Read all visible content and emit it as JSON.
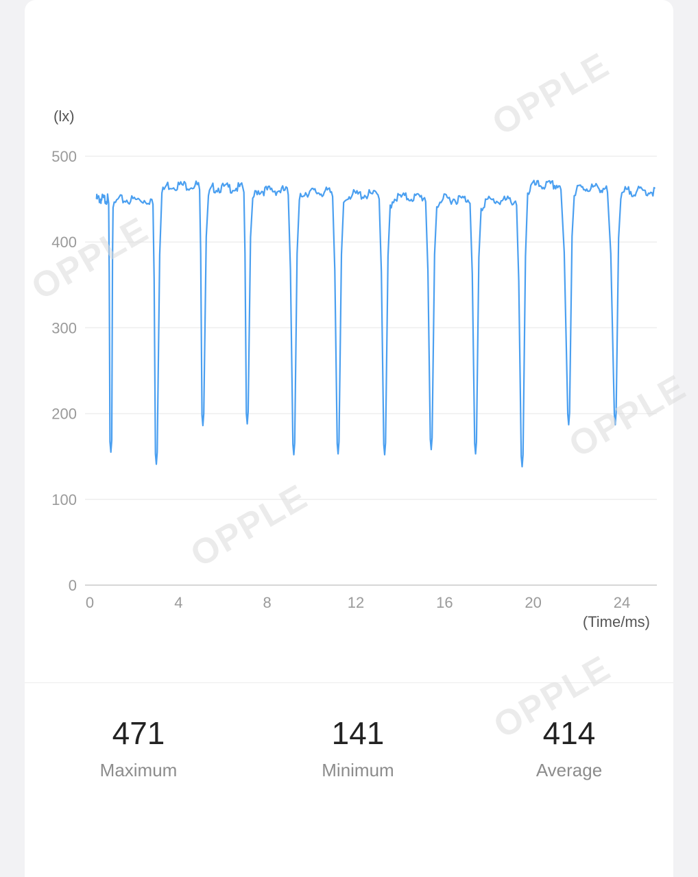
{
  "chart_data": {
    "type": "line",
    "unit_label": "(lx)",
    "xlabel": "(Time/ms)",
    "ylabel": "",
    "xlim": [
      0,
      25.5
    ],
    "ylim": [
      0,
      500
    ],
    "xticks": [
      0,
      4,
      8,
      12,
      16,
      20,
      24
    ],
    "yticks": [
      0,
      100,
      200,
      300,
      400,
      500
    ],
    "grid": true,
    "color": "#4a9ff0",
    "plateaus": [
      {
        "x_start": 0.3,
        "x_end": 0.8,
        "level": 453
      },
      {
        "x_start": 1.1,
        "x_end": 2.8,
        "level": 452
      },
      {
        "x_start": 3.3,
        "x_end": 4.9,
        "level": 469
      },
      {
        "x_start": 5.4,
        "x_end": 6.9,
        "level": 466
      },
      {
        "x_start": 7.4,
        "x_end": 8.9,
        "level": 463
      },
      {
        "x_start": 9.5,
        "x_end": 10.9,
        "level": 461
      },
      {
        "x_start": 11.5,
        "x_end": 13.0,
        "level": 458
      },
      {
        "x_start": 13.6,
        "x_end": 15.1,
        "level": 455
      },
      {
        "x_start": 15.7,
        "x_end": 17.1,
        "level": 453
      },
      {
        "x_start": 17.7,
        "x_end": 19.2,
        "level": 451
      },
      {
        "x_start": 19.8,
        "x_end": 21.2,
        "level": 469
      },
      {
        "x_start": 21.9,
        "x_end": 23.3,
        "level": 466
      },
      {
        "x_start": 24.0,
        "x_end": 25.5,
        "level": 462
      }
    ],
    "dips": [
      {
        "x": 0.95,
        "min": 155
      },
      {
        "x": 3.0,
        "min": 141
      },
      {
        "x": 5.1,
        "min": 186
      },
      {
        "x": 7.1,
        "min": 188
      },
      {
        "x": 9.2,
        "min": 152
      },
      {
        "x": 11.2,
        "min": 153
      },
      {
        "x": 13.3,
        "min": 152
      },
      {
        "x": 15.4,
        "min": 158
      },
      {
        "x": 17.4,
        "min": 153
      },
      {
        "x": 19.5,
        "min": 138
      },
      {
        "x": 21.6,
        "min": 187
      },
      {
        "x": 23.7,
        "min": 187
      }
    ]
  },
  "stats": {
    "max_value": "471",
    "max_label": "Maximum",
    "min_value": "141",
    "min_label": "Minimum",
    "avg_value": "414",
    "avg_label": "Average"
  },
  "watermark": "OPPLE"
}
